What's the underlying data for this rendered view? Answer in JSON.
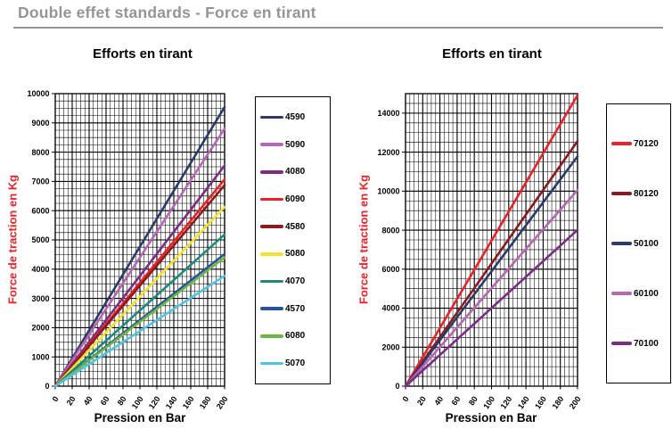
{
  "page": {
    "title": "Double effet standards - Force en tirant"
  },
  "chart_data": [
    {
      "type": "line",
      "title": "Efforts en tirant",
      "xlabel": "Pression en Bar",
      "ylabel": "Force de traction en Kg",
      "xlim": [
        0,
        200
      ],
      "ylim": [
        0,
        10000
      ],
      "x_major_step": 20,
      "x_minor_step": 5,
      "y_major_step": 1000,
      "y_minor_step": 250,
      "x_ticks": [
        0,
        20,
        40,
        60,
        80,
        100,
        120,
        140,
        160,
        180,
        200
      ],
      "y_ticks": [
        0,
        1000,
        2000,
        3000,
        4000,
        5000,
        6000,
        7000,
        8000,
        9000,
        10000
      ],
      "grid": true,
      "legend_position": "right",
      "series": [
        {
          "name": "4590",
          "color": "#2B3A6B",
          "x": [
            0,
            200
          ],
          "y": [
            0,
            9542
          ]
        },
        {
          "name": "5090",
          "color": "#B765B5",
          "x": [
            0,
            200
          ],
          "y": [
            0,
            8801
          ]
        },
        {
          "name": "4080",
          "color": "#7C2B86",
          "x": [
            0,
            200
          ],
          "y": [
            0,
            7540
          ]
        },
        {
          "name": "6090",
          "color": "#EC2027",
          "x": [
            0,
            200
          ],
          "y": [
            0,
            7069
          ]
        },
        {
          "name": "4580",
          "color": "#8C1A1D",
          "x": [
            0,
            200
          ],
          "y": [
            0,
            6872
          ]
        },
        {
          "name": "5080",
          "color": "#F3E32B",
          "x": [
            0,
            200
          ],
          "y": [
            0,
            6126
          ]
        },
        {
          "name": "4070",
          "color": "#1A8A7C",
          "x": [
            0,
            200
          ],
          "y": [
            0,
            5184
          ]
        },
        {
          "name": "4570",
          "color": "#2A52A0",
          "x": [
            0,
            200
          ],
          "y": [
            0,
            4516
          ]
        },
        {
          "name": "6080",
          "color": "#68B93F",
          "x": [
            0,
            200
          ],
          "y": [
            0,
            4398
          ]
        },
        {
          "name": "5070",
          "color": "#4FC2E8",
          "x": [
            0,
            200
          ],
          "y": [
            0,
            3770
          ]
        }
      ]
    },
    {
      "type": "line",
      "title": "Efforts en tirant",
      "xlabel": "Pression en Bar",
      "ylabel": "Force de traction en Kg",
      "xlim": [
        0,
        200
      ],
      "ylim": [
        0,
        15000
      ],
      "x_major_step": 20,
      "x_minor_step": 5,
      "y_major_step": 2000,
      "y_minor_step": 500,
      "x_ticks": [
        0,
        20,
        40,
        60,
        80,
        100,
        120,
        140,
        160,
        180,
        200
      ],
      "y_ticks": [
        0,
        2000,
        4000,
        6000,
        8000,
        10000,
        12000,
        14000
      ],
      "grid": true,
      "legend_position": "right",
      "series": [
        {
          "name": "70120",
          "color": "#EC2027",
          "x": [
            0,
            200
          ],
          "y": [
            0,
            14923
          ]
        },
        {
          "name": "80120",
          "color": "#8C1A1D",
          "x": [
            0,
            200
          ],
          "y": [
            0,
            12566
          ]
        },
        {
          "name": "50100",
          "color": "#2B3A6B",
          "x": [
            0,
            200
          ],
          "y": [
            0,
            11781
          ]
        },
        {
          "name": "60100",
          "color": "#B765B5",
          "x": [
            0,
            200
          ],
          "y": [
            0,
            10053
          ]
        },
        {
          "name": "70100",
          "color": "#7C2B86",
          "x": [
            0,
            200
          ],
          "y": [
            0,
            8011
          ]
        }
      ]
    }
  ]
}
